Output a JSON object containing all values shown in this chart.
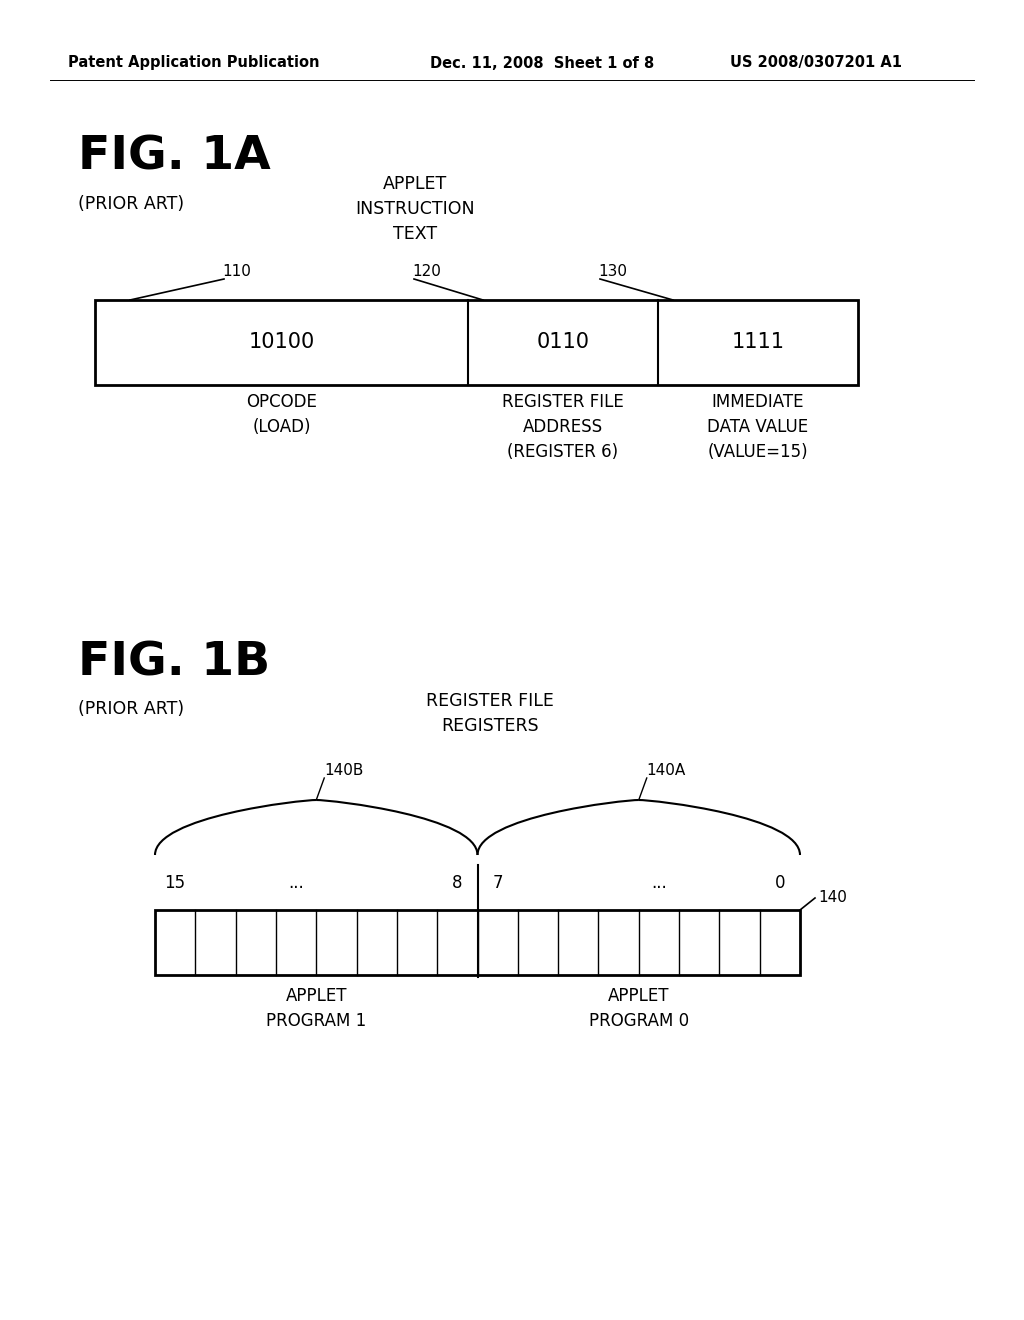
{
  "bg_color": "#ffffff",
  "header_left": "Patent Application Publication",
  "header_center": "Dec. 11, 2008  Sheet 1 of 8",
  "header_right": "US 2008/0307201 A1",
  "fig1a_title": "FIG. 1A",
  "fig1a_prior_art": "(PRIOR ART)",
  "fig1a_label_top": "APPLET\nINSTRUCTION\nTEXT",
  "fig1a_ref110": "110",
  "fig1a_ref120": "120",
  "fig1a_ref130": "130",
  "fig1a_val1": "10100",
  "fig1a_val2": "0110",
  "fig1a_val3": "1111",
  "fig1a_lbl1": "OPCODE\n(LOAD)",
  "fig1a_lbl2": "REGISTER FILE\nADDRESS\n(REGISTER 6)",
  "fig1a_lbl3": "IMMEDIATE\nDATA VALUE\n(VALUE=15)",
  "fig1b_title": "FIG. 1B",
  "fig1b_prior_art": "(PRIOR ART)",
  "fig1b_label_top": "REGISTER FILE\nREGISTERS",
  "fig1b_ref140A": "140A",
  "fig1b_ref140B": "140B",
  "fig1b_ref140": "140",
  "fig1b_num15": "15",
  "fig1b_num8": "8",
  "fig1b_num7": "7",
  "fig1b_num0": "0",
  "fig1b_dots1": "...",
  "fig1b_dots2": "...",
  "fig1b_lbl_prog1": "APPLET\nPROGRAM 1",
  "fig1b_lbl_prog0": "APPLET\nPROGRAM 0",
  "num_cells": 16
}
